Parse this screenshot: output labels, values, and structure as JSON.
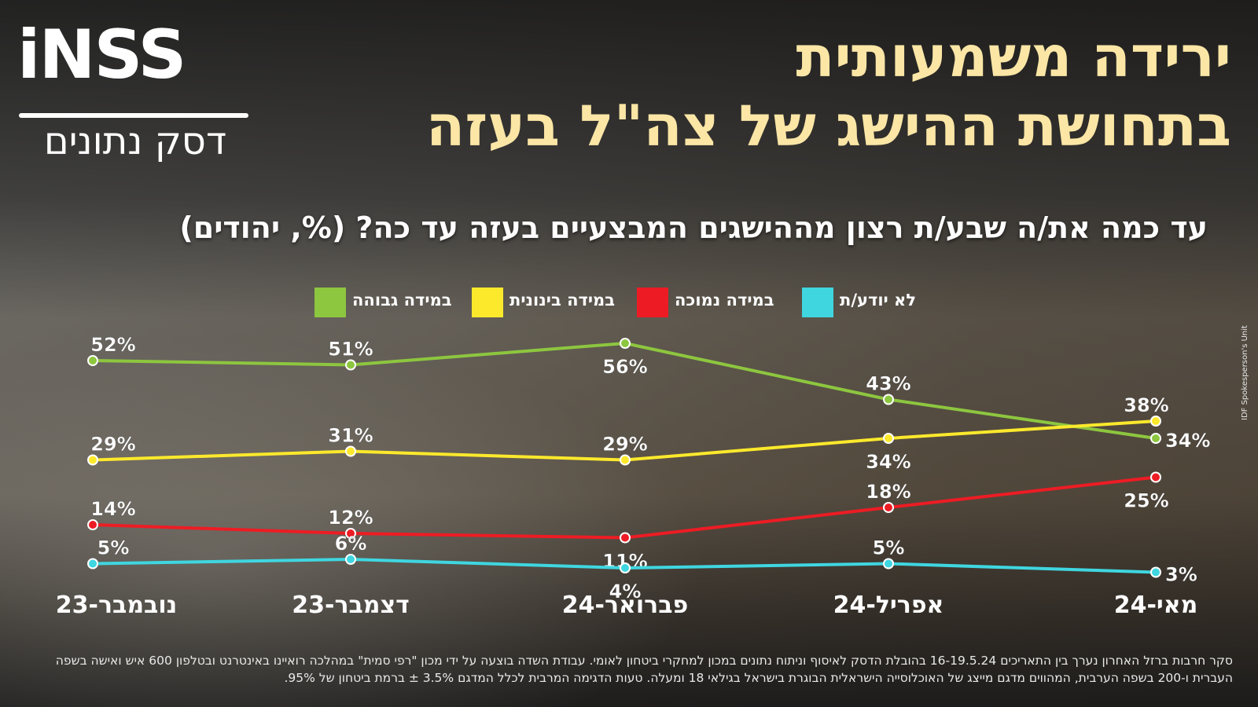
{
  "logo": {
    "brand": "iNSS",
    "subtitle": "דסק נתונים"
  },
  "title_lines": [
    "ירידה משמעותית",
    "בתחושת ההישג של צה\"ל בעזה"
  ],
  "chart_data": {
    "type": "line",
    "title": "עד כמה את/ה שבע/ת רצון מההישגים המבצעיים בעזה עד כה? (%, יהודים)",
    "categories": [
      "נובמבר-23",
      "דצמבר-23",
      "פברואר-24",
      "אפריל-24",
      "מאי-24"
    ],
    "ylim": [
      0,
      60
    ],
    "grid": false,
    "legend_position": "top",
    "series": [
      {
        "name": "במידה גבוהה",
        "color": "#8dc63f",
        "values": [
          52,
          51,
          56,
          43,
          34
        ],
        "label_side": [
          "above",
          "above",
          "below",
          "above",
          "right"
        ]
      },
      {
        "name": "במידה בינונית",
        "color": "#fde92c",
        "values": [
          29,
          31,
          29,
          34,
          38
        ],
        "label_side": [
          "above",
          "above",
          "above",
          "below",
          "above"
        ]
      },
      {
        "name": "במידה נמוכה",
        "color": "#ed1c24",
        "values": [
          14,
          12,
          11,
          18,
          25
        ],
        "label_side": [
          "above",
          "above",
          "below",
          "above",
          "below"
        ]
      },
      {
        "name": "לא יודע/ת",
        "color": "#3fd6e0",
        "values": [
          5,
          6,
          4,
          5,
          3
        ],
        "label_side": [
          "above",
          "above",
          "below",
          "above",
          "right"
        ]
      }
    ]
  },
  "credit": "IDF Spokesperson's Unit",
  "footnote": "סקר חרבות ברזל האחרון נערך בין התאריכים 16-19.5.24 בהובלת הדסק לאיסוף וניתוח נתונים במכון למחקרי ביטחון לאומי. עבודת השדה בוצעה על ידי מכון \"רפי סמית\" במהלכה רואיינו באינטרנט ובטלפון 600 איש ואישה בשפה העברית ו-200 בשפה הערבית, המהווים מדגם מייצג של האוכלוסייה הישראלית הבוגרת בישראל בגילאי 18 ומעלה. טעות הדגימה המרבית לכלל המדגם 3.5% ± ברמת ביטחון של 95%."
}
